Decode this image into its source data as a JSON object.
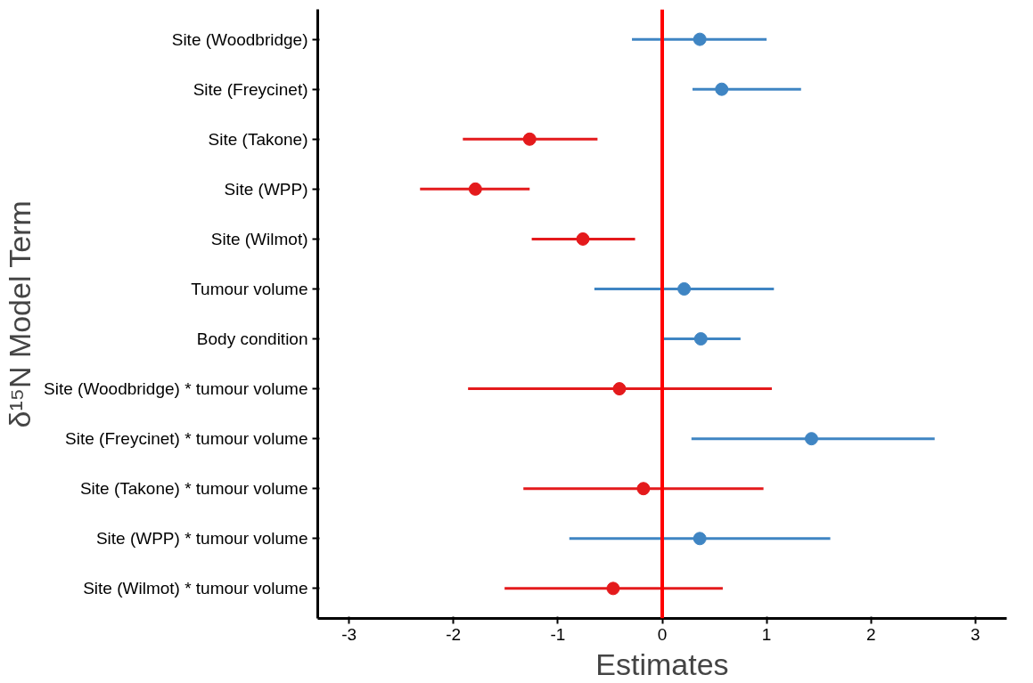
{
  "chart_data": {
    "type": "scatter",
    "orientation": "horizontal",
    "xlabel": "Estimates",
    "ylabel": "δ¹⁵N Model Term",
    "categories": [
      "Site (Woodbridge)",
      "Site (Freycinet)",
      "Site (Takone)",
      "Site (WPP)",
      "Site (Wilmot)",
      "Tumour volume",
      "Body condition",
      "Site (Woodbridge) * tumour volume",
      "Site (Freycinet) * tumour volume",
      "Site (Takone) * tumour volume",
      "Site (WPP) * tumour volume",
      "Site (Wilmot) * tumour volume"
    ],
    "values": [
      0.36,
      0.57,
      -1.27,
      -1.79,
      -0.76,
      0.21,
      0.37,
      -0.41,
      1.43,
      -0.18,
      0.36,
      -0.47
    ],
    "errors": [
      [
        -0.29,
        1.0
      ],
      [
        0.29,
        1.33
      ],
      [
        -1.91,
        -0.62
      ],
      [
        -2.32,
        -1.27
      ],
      [
        -1.25,
        -0.26
      ],
      [
        -0.65,
        1.07
      ],
      [
        0.0,
        0.75
      ],
      [
        -1.86,
        1.05
      ],
      [
        0.28,
        2.61
      ],
      [
        -1.33,
        0.97
      ],
      [
        -0.89,
        1.61
      ],
      [
        -1.51,
        0.58
      ]
    ],
    "colors": [
      "#3f85c3",
      "#3f85c3",
      "#e41a1c",
      "#e41a1c",
      "#e41a1c",
      "#3f85c3",
      "#3f85c3",
      "#e41a1c",
      "#3f85c3",
      "#e41a1c",
      "#3f85c3",
      "#e41a1c"
    ],
    "xlim": [
      -3.3,
      3.3
    ],
    "xticks": [
      -3,
      -2,
      -1,
      0,
      1,
      2,
      3
    ],
    "ref_lines": [
      {
        "axis": "x",
        "value": 0,
        "color": "#ff0000"
      }
    ],
    "grid": false,
    "marker": "circle"
  }
}
